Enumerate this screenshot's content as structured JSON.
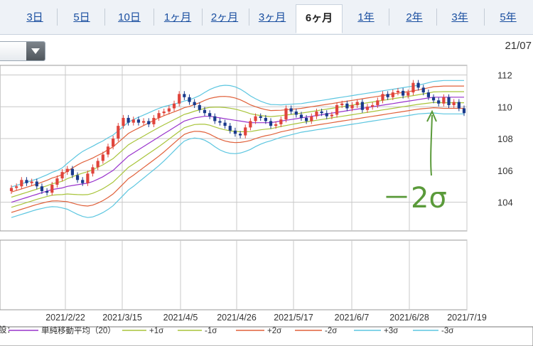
{
  "tabs": [
    {
      "label": "3日"
    },
    {
      "label": "5日"
    },
    {
      "label": "10日"
    },
    {
      "label": "1ヶ月"
    },
    {
      "label": "2ヶ月"
    },
    {
      "label": "3ヶ月"
    },
    {
      "label": "6ヶ月",
      "active": true
    },
    {
      "label": "1年"
    },
    {
      "label": "2年"
    },
    {
      "label": "3年"
    },
    {
      "label": "5年"
    }
  ],
  "date_top": "21/07",
  "annotation": "－2σ",
  "colors": {
    "up": "#e0443c",
    "down": "#1a3a8c",
    "sma": "#9933cc",
    "s1": "#a8c43a",
    "s2": "#e0603a",
    "s3": "#5cc6e0",
    "grid": "#c8c8c8",
    "annotation": "#5a9a3a"
  },
  "chart_data": {
    "type": "candlestick",
    "y_ticks": [
      104,
      106,
      108,
      110,
      112
    ],
    "ylim": [
      102.2,
      112.6
    ],
    "x_ticks": [
      "2021/2/22",
      "2021/3/15",
      "2021/4/5",
      "2021/4/26",
      "2021/5/17",
      "2021/6/7",
      "2021/6/28",
      "2021/7/19"
    ],
    "legend": [
      {
        "label": "単純移動平均（20）",
        "key": "sma"
      },
      {
        "label": "+1σ",
        "key": "s1"
      },
      {
        "label": "-1σ",
        "key": "s1"
      },
      {
        "label": "+2σ",
        "key": "s2"
      },
      {
        "label": "-2σ",
        "key": "s2"
      },
      {
        "label": "+3σ",
        "key": "s3"
      },
      {
        "label": "-3σ",
        "key": "s3"
      }
    ],
    "legend_prefix": "設：",
    "close": [
      104.9,
      105.0,
      105.4,
      105.2,
      105.3,
      105.0,
      104.7,
      104.6,
      105.1,
      105.5,
      105.9,
      106.1,
      105.7,
      105.4,
      105.2,
      105.8,
      106.2,
      106.6,
      107.0,
      107.5,
      108.0,
      108.8,
      109.3,
      109.0,
      109.2,
      109.0,
      109.1,
      108.9,
      109.3,
      109.6,
      109.7,
      109.9,
      110.2,
      110.8,
      110.6,
      110.3,
      110.1,
      109.8,
      109.6,
      109.4,
      109.1,
      109.0,
      108.8,
      108.5,
      108.3,
      108.2,
      108.7,
      109.1,
      109.4,
      109.3,
      109.1,
      108.8,
      108.9,
      109.2,
      109.9,
      109.7,
      109.5,
      109.3,
      109.1,
      109.4,
      109.7,
      109.6,
      109.4,
      109.5,
      110.1,
      110.2,
      109.9,
      110.1,
      110.3,
      109.8,
      110.0,
      110.1,
      110.4,
      110.8,
      110.6,
      110.9,
      111.0,
      110.7,
      110.9,
      111.5,
      111.2,
      110.9,
      110.6,
      110.4,
      110.2,
      110.6,
      110.1,
      110.3,
      109.9,
      109.6
    ],
    "sma": [
      104.0,
      104.1,
      104.2,
      104.3,
      104.4,
      104.5,
      104.6,
      104.7,
      104.8,
      104.85,
      104.9,
      105.0,
      105.05,
      105.1,
      105.15,
      105.2,
      105.3,
      105.45,
      105.6,
      105.8,
      106.0,
      106.3,
      106.6,
      106.9,
      107.1,
      107.3,
      107.5,
      107.7,
      107.9,
      108.1,
      108.3,
      108.5,
      108.7,
      108.9,
      109.1,
      109.2,
      109.3,
      109.35,
      109.4,
      109.4,
      109.35,
      109.3,
      109.25,
      109.2,
      109.15,
      109.1,
      109.05,
      109.0,
      109.0,
      109.0,
      109.0,
      109.0,
      109.05,
      109.1,
      109.15,
      109.2,
      109.25,
      109.3,
      109.35,
      109.4,
      109.45,
      109.5,
      109.55,
      109.6,
      109.65,
      109.7,
      109.75,
      109.8,
      109.85,
      109.9,
      109.95,
      110.0,
      110.05,
      110.1,
      110.15,
      110.2,
      110.25,
      110.3,
      110.35,
      110.4,
      110.45,
      110.5,
      110.55,
      110.6,
      110.6,
      110.6,
      110.6,
      110.6,
      110.6,
      110.6
    ],
    "sigma": [
      0.32,
      0.32,
      0.32,
      0.32,
      0.32,
      0.32,
      0.33,
      0.34,
      0.36,
      0.38,
      0.42,
      0.48,
      0.55,
      0.62,
      0.68,
      0.72,
      0.74,
      0.75,
      0.75,
      0.75,
      0.74,
      0.73,
      0.72,
      0.71,
      0.7,
      0.68,
      0.66,
      0.64,
      0.62,
      0.6,
      0.57,
      0.53,
      0.49,
      0.45,
      0.42,
      0.41,
      0.42,
      0.45,
      0.5,
      0.56,
      0.62,
      0.67,
      0.7,
      0.71,
      0.7,
      0.67,
      0.62,
      0.56,
      0.5,
      0.45,
      0.41,
      0.38,
      0.36,
      0.34,
      0.33,
      0.32,
      0.31,
      0.3,
      0.3,
      0.3,
      0.3,
      0.3,
      0.3,
      0.3,
      0.3,
      0.3,
      0.3,
      0.3,
      0.3,
      0.3,
      0.3,
      0.3,
      0.3,
      0.3,
      0.3,
      0.3,
      0.3,
      0.3,
      0.3,
      0.3,
      0.3,
      0.31,
      0.32,
      0.33,
      0.34,
      0.35,
      0.35,
      0.35,
      0.35,
      0.35
    ]
  }
}
